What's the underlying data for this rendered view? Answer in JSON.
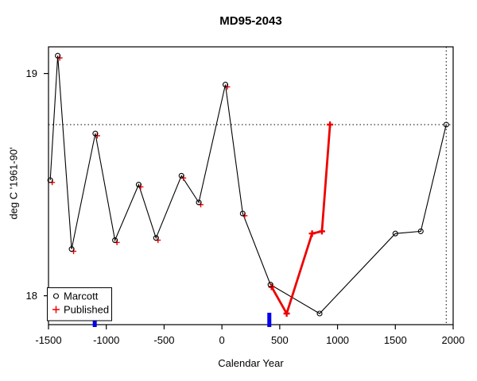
{
  "title": "MD95-2043",
  "axes": {
    "x": {
      "label": "Calendar Year",
      "range": [
        -1500,
        2000
      ],
      "ticks": [
        -1500,
        -1000,
        -500,
        0,
        500,
        1000,
        1500,
        2000
      ]
    },
    "y": {
      "label": "deg C '1961-90'",
      "range": [
        17.87,
        19.12
      ],
      "ticks": [
        18,
        19
      ]
    }
  },
  "legend": {
    "items": [
      {
        "label": "Marcott",
        "marker": "circle-icon",
        "color": "#000000"
      },
      {
        "label": "Published",
        "marker": "plus-icon",
        "color": "#EE0000"
      }
    ]
  },
  "reference_lines": {
    "style": "dotted",
    "horizontal_temp": 18.77,
    "vertical_year": 1940,
    "color": "#000000"
  },
  "rug_marks": {
    "color": "#0000EE",
    "years": [
      -1100,
      410
    ]
  },
  "chart_data": {
    "type": "line",
    "xlabel": "Calendar Year",
    "ylabel": "deg C '1961-90'",
    "xlim": [
      -1500,
      2000
    ],
    "ylim": [
      17.87,
      19.12
    ],
    "series": [
      {
        "name": "Marcott",
        "color": "#000000",
        "marker": "circle",
        "points": [
          [
            -1485,
            18.52
          ],
          [
            -1420,
            19.08
          ],
          [
            -1300,
            18.21
          ],
          [
            -1095,
            18.73
          ],
          [
            -925,
            18.25
          ],
          [
            -720,
            18.5
          ],
          [
            -570,
            18.26
          ],
          [
            -350,
            18.54
          ],
          [
            -200,
            18.42
          ],
          [
            30,
            18.95
          ],
          [
            180,
            18.37
          ],
          [
            420,
            18.05
          ],
          [
            845,
            17.92
          ],
          [
            1500,
            18.28
          ],
          [
            1720,
            18.29
          ],
          [
            1940,
            18.77
          ]
        ]
      },
      {
        "name": "Published",
        "color": "#EE0000",
        "marker": "plus",
        "marker_points": [
          [
            -1468,
            18.51
          ],
          [
            -1403,
            19.07
          ],
          [
            -1283,
            18.2
          ],
          [
            -1078,
            18.72
          ],
          [
            -908,
            18.24
          ],
          [
            -703,
            18.49
          ],
          [
            -553,
            18.25
          ],
          [
            -333,
            18.53
          ],
          [
            -183,
            18.41
          ],
          [
            47,
            18.94
          ],
          [
            197,
            18.36
          ],
          [
            430,
            18.04
          ],
          [
            560,
            17.92
          ],
          [
            780,
            18.28
          ],
          [
            865,
            18.29
          ],
          [
            935,
            18.77
          ]
        ],
        "line_points": [
          [
            430,
            18.04
          ],
          [
            560,
            17.92
          ],
          [
            780,
            18.28
          ],
          [
            865,
            18.29
          ],
          [
            935,
            18.77
          ]
        ]
      }
    ]
  }
}
